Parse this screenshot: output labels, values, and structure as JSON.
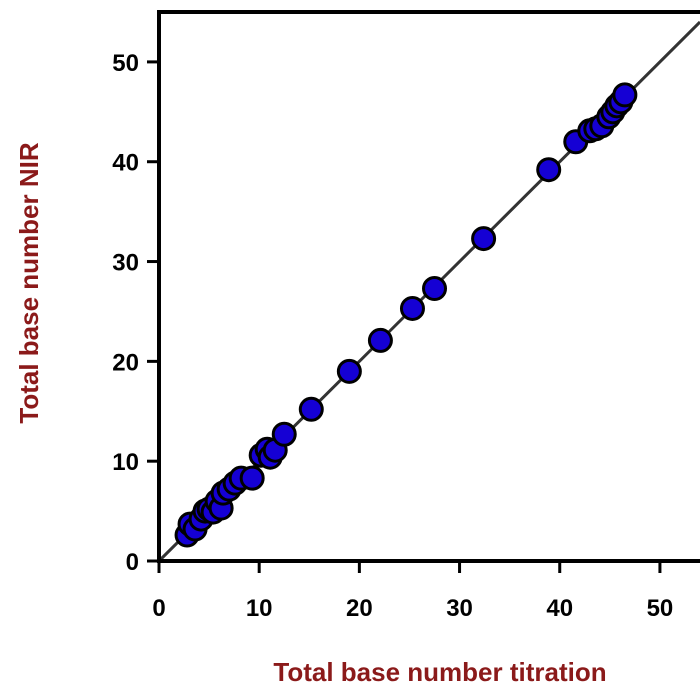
{
  "chart_data": {
    "type": "scatter",
    "xlabel": "Total base number titration",
    "ylabel": "Total base number NIR",
    "xlim": [
      0,
      54
    ],
    "ylim": [
      0,
      55
    ],
    "xticks": [
      0,
      10,
      20,
      30,
      40,
      50
    ],
    "yticks": [
      0,
      10,
      20,
      30,
      40,
      50
    ],
    "grid": false,
    "reference_line": {
      "slope": 1,
      "intercept": 0
    },
    "series": [
      {
        "points": [
          [
            2.8,
            2.6
          ],
          [
            3.1,
            3.7
          ],
          [
            3.6,
            3.2
          ],
          [
            4.2,
            4.2
          ],
          [
            4.6,
            5.0
          ],
          [
            5.0,
            5.2
          ],
          [
            5.4,
            4.9
          ],
          [
            5.8,
            6.0
          ],
          [
            6.2,
            5.3
          ],
          [
            6.4,
            6.8
          ],
          [
            7.0,
            7.2
          ],
          [
            7.6,
            7.8
          ],
          [
            8.2,
            8.3
          ],
          [
            9.3,
            8.3
          ],
          [
            10.2,
            10.6
          ],
          [
            10.8,
            11.2
          ],
          [
            11.1,
            10.4
          ],
          [
            11.6,
            11.1
          ],
          [
            12.5,
            12.7
          ],
          [
            15.2,
            15.2
          ],
          [
            19.0,
            19.0
          ],
          [
            22.1,
            22.1
          ],
          [
            25.3,
            25.3
          ],
          [
            27.5,
            27.3
          ],
          [
            32.4,
            32.3
          ],
          [
            38.9,
            39.2
          ],
          [
            41.6,
            42.0
          ],
          [
            43.0,
            43.1
          ],
          [
            43.6,
            43.3
          ],
          [
            44.2,
            43.6
          ],
          [
            44.9,
            44.5
          ],
          [
            45.3,
            45.0
          ],
          [
            45.7,
            45.6
          ],
          [
            46.1,
            46.0
          ],
          [
            46.5,
            46.7
          ]
        ]
      }
    ]
  },
  "colors": {
    "point_fill": "#1500d4",
    "point_stroke": "#000000",
    "line": "#333333",
    "axis": "#000000",
    "axis_title": "#8b1a1a"
  }
}
